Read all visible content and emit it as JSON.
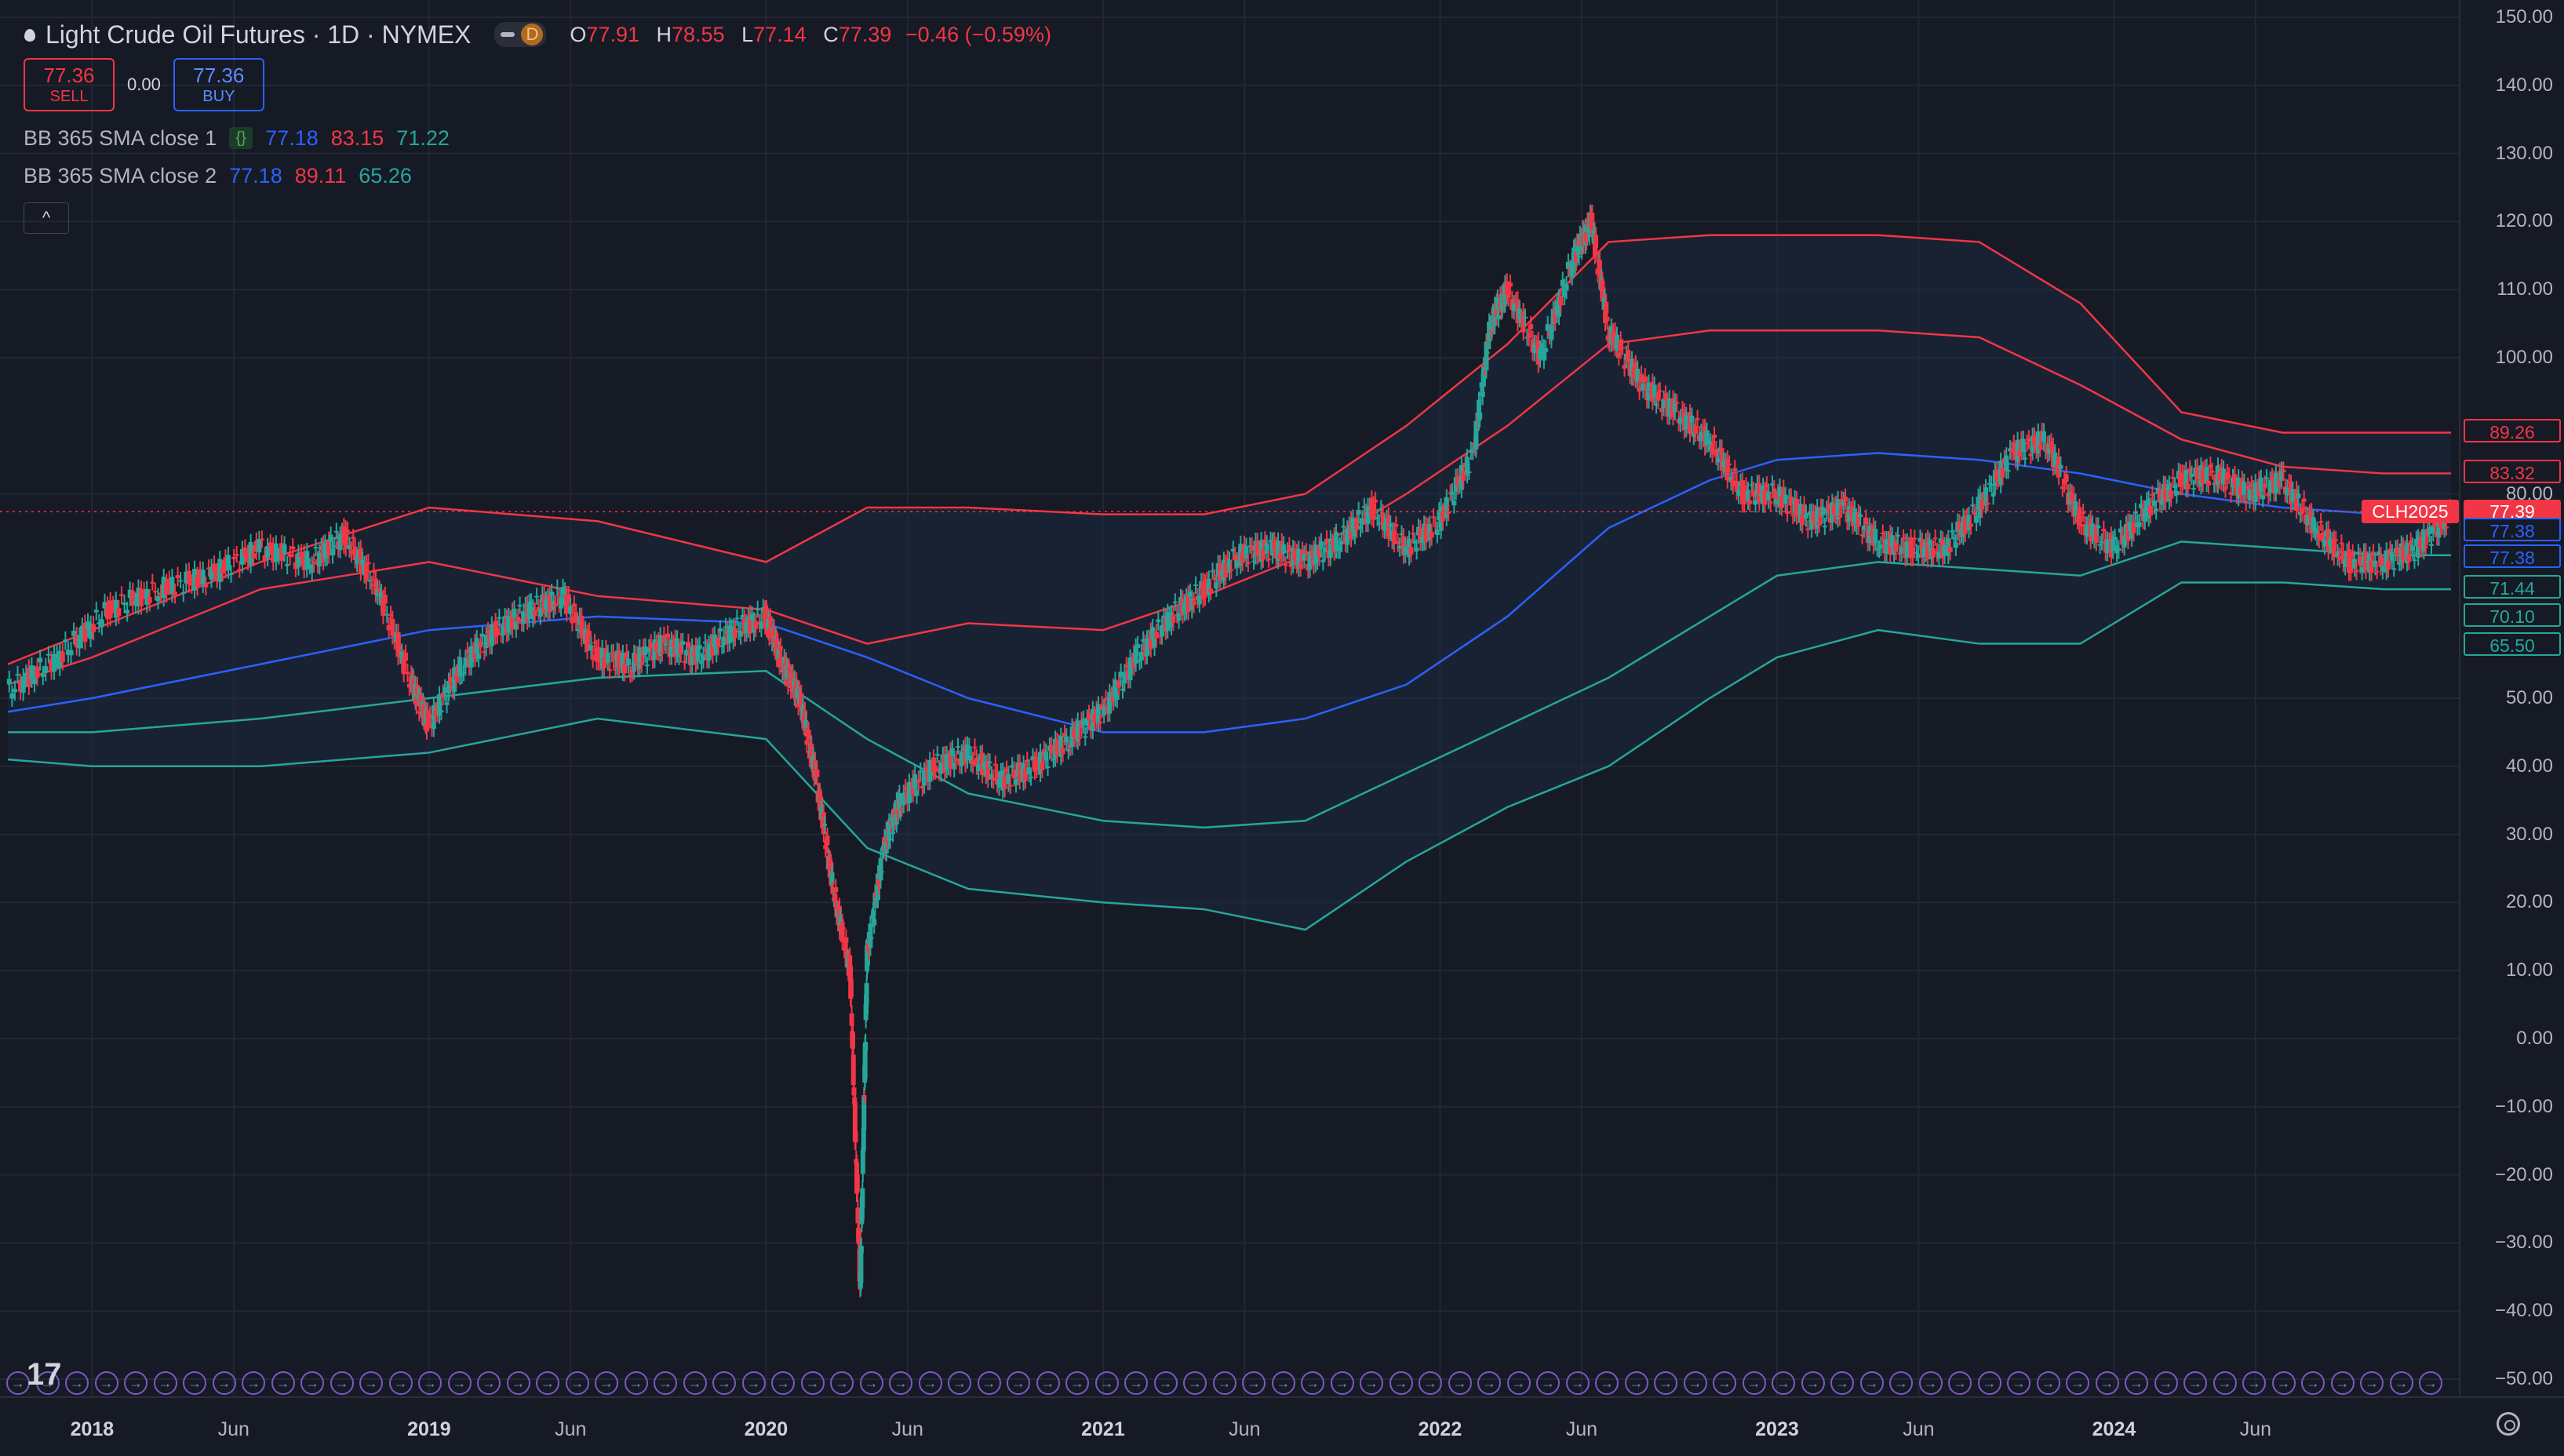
{
  "header": {
    "symbol_title": "Light Crude Oil Futures · 1D · NYMEX",
    "interval_badge": "D",
    "ohlc": {
      "o_label": "O",
      "o": "77.91",
      "h_label": "H",
      "h": "78.55",
      "l_label": "L",
      "l": "77.14",
      "c_label": "C",
      "c": "77.39",
      "change": "−0.46 (−0.59%)"
    }
  },
  "trade": {
    "sell_price": "77.36",
    "sell_label": "SELL",
    "spread": "0.00",
    "buy_price": "77.36",
    "buy_label": "BUY"
  },
  "indicators": [
    {
      "name": "BB 365 SMA close 1",
      "basis": "77.18",
      "upper": "83.15",
      "lower": "71.22"
    },
    {
      "name": "BB 365 SMA close 2",
      "basis": "77.18",
      "upper": "89.11",
      "lower": "65.26"
    }
  ],
  "collapse_glyph": "^",
  "logo_text": "17",
  "price_axis": {
    "ticks": [
      "150.00",
      "140.00",
      "130.00",
      "120.00",
      "110.00",
      "100.00",
      "80.00",
      "50.00",
      "40.00",
      "30.00",
      "20.00",
      "10.00",
      "0.00",
      "−10.00",
      "−20.00",
      "−30.00",
      "−40.00",
      "−50.00"
    ],
    "tick_values": [
      150,
      140,
      130,
      120,
      110,
      100,
      80,
      50,
      40,
      30,
      20,
      10,
      0,
      -10,
      -20,
      -30,
      -40,
      -50
    ],
    "tags": [
      {
        "label": "89.26",
        "value": 89.26,
        "color": "#f23645",
        "style": "outline"
      },
      {
        "label": "83.32",
        "value": 83.32,
        "color": "#f23645",
        "style": "outline"
      },
      {
        "label": "77.39",
        "value": 77.39,
        "color": "#f23645",
        "style": "filled"
      },
      {
        "label": "77.38",
        "value": 74.8,
        "color": "#2962ff",
        "style": "outline"
      },
      {
        "label": "77.38",
        "value": 70.8,
        "color": "#2962ff",
        "style": "outline"
      },
      {
        "label": "71.44",
        "value": 66.4,
        "color": "#26a69a",
        "style": "outline"
      },
      {
        "label": "70.10",
        "value": 62.2,
        "color": "#26a69a",
        "style": "outline"
      },
      {
        "label": "65.50",
        "value": 57.9,
        "color": "#26a69a",
        "style": "outline"
      }
    ],
    "symbol_tag": "CLH2025"
  },
  "time_axis": {
    "labels": [
      {
        "text": "2018",
        "t": 2018.0,
        "year": true
      },
      {
        "text": "Jun",
        "t": 2018.42,
        "year": false
      },
      {
        "text": "2019",
        "t": 2019.0,
        "year": true
      },
      {
        "text": "Jun",
        "t": 2019.42,
        "year": false
      },
      {
        "text": "2020",
        "t": 2020.0,
        "year": true
      },
      {
        "text": "Jun",
        "t": 2020.42,
        "year": false
      },
      {
        "text": "2021",
        "t": 2021.0,
        "year": true
      },
      {
        "text": "Jun",
        "t": 2021.42,
        "year": false
      },
      {
        "text": "2022",
        "t": 2022.0,
        "year": true
      },
      {
        "text": "Jun",
        "t": 2022.42,
        "year": false
      },
      {
        "text": "2023",
        "t": 2023.0,
        "year": true
      },
      {
        "text": "Jun",
        "t": 2023.42,
        "year": false
      },
      {
        "text": "2024",
        "t": 2024.0,
        "year": true
      },
      {
        "text": "Jun",
        "t": 2024.42,
        "year": false
      }
    ]
  },
  "colors": {
    "bg": "#161a25",
    "up": "#26a69a",
    "down": "#f23645",
    "basis": "#2962ff",
    "upper": "#f23645",
    "lower": "#26a69a",
    "grid": "#232733"
  },
  "chart_data": {
    "type": "line",
    "title": "Light Crude Oil Futures · 1D · NYMEX",
    "ylim": [
      -50,
      150
    ],
    "xlim": [
      2017.75,
      2025.0
    ],
    "grid": true,
    "last_price": 77.39,
    "series": [
      {
        "name": "Price",
        "x": [
          2017.75,
          2017.9,
          2018.05,
          2018.2,
          2018.35,
          2018.5,
          2018.65,
          2018.75,
          2018.85,
          2018.95,
          2019.0,
          2019.1,
          2019.2,
          2019.3,
          2019.4,
          2019.5,
          2019.6,
          2019.7,
          2019.8,
          2019.9,
          2020.0,
          2020.05,
          2020.1,
          2020.15,
          2020.2,
          2020.25,
          2020.28,
          2020.3,
          2020.35,
          2020.4,
          2020.5,
          2020.6,
          2020.7,
          2020.8,
          2020.9,
          2021.0,
          2021.1,
          2021.2,
          2021.3,
          2021.4,
          2021.5,
          2021.6,
          2021.7,
          2021.8,
          2021.9,
          2022.0,
          2022.1,
          2022.15,
          2022.2,
          2022.3,
          2022.4,
          2022.45,
          2022.5,
          2022.6,
          2022.7,
          2022.8,
          2022.9,
          2023.0,
          2023.1,
          2023.2,
          2023.3,
          2023.4,
          2023.5,
          2023.6,
          2023.7,
          2023.8,
          2023.9,
          2024.0,
          2024.1,
          2024.2,
          2024.3,
          2024.4,
          2024.5,
          2024.6,
          2024.7,
          2024.8,
          2024.9,
          2025.0
        ],
        "values": [
          51,
          56,
          63,
          66,
          68,
          72,
          70,
          74,
          66,
          52,
          46,
          55,
          60,
          63,
          65,
          56,
          55,
          58,
          56,
          60,
          62,
          55,
          50,
          38,
          22,
          10,
          -37,
          12,
          28,
          35,
          40,
          42,
          38,
          40,
          44,
          48,
          56,
          62,
          66,
          71,
          72,
          70,
          73,
          78,
          72,
          76,
          86,
          105,
          110,
          100,
          115,
          120,
          104,
          96,
          92,
          88,
          80,
          80,
          76,
          78,
          73,
          72,
          72,
          78,
          86,
          88,
          76,
          72,
          78,
          82,
          83,
          80,
          82,
          75,
          70,
          70,
          72,
          77
        ]
      },
      {
        "name": "Basis",
        "x": [
          2017.75,
          2018.0,
          2018.5,
          2019.0,
          2019.5,
          2020.0,
          2020.3,
          2020.6,
          2021.0,
          2021.3,
          2021.6,
          2021.9,
          2022.2,
          2022.5,
          2022.8,
          2023.0,
          2023.3,
          2023.6,
          2023.9,
          2024.2,
          2024.5,
          2024.8,
          2025.0
        ],
        "values": [
          48,
          50,
          55,
          60,
          62,
          61,
          56,
          50,
          45,
          45,
          47,
          52,
          62,
          75,
          82,
          85,
          86,
          85,
          83,
          80,
          78,
          77,
          77
        ]
      },
      {
        "name": "Upper 1",
        "x": [
          2017.75,
          2018.0,
          2018.5,
          2019.0,
          2019.5,
          2020.0,
          2020.3,
          2020.6,
          2021.0,
          2021.3,
          2021.6,
          2021.9,
          2022.2,
          2022.5,
          2022.8,
          2023.0,
          2023.3,
          2023.6,
          2023.9,
          2024.2,
          2024.5,
          2024.8,
          2025.0
        ],
        "values": [
          52,
          56,
          66,
          70,
          65,
          63,
          58,
          61,
          60,
          65,
          71,
          80,
          90,
          102,
          104,
          104,
          104,
          103,
          96,
          88,
          84,
          83,
          83
        ]
      },
      {
        "name": "Upper 2",
        "x": [
          2017.75,
          2018.0,
          2018.5,
          2019.0,
          2019.5,
          2020.0,
          2020.3,
          2020.6,
          2021.0,
          2021.3,
          2021.6,
          2021.9,
          2022.2,
          2022.5,
          2022.8,
          2023.0,
          2023.3,
          2023.6,
          2023.9,
          2024.2,
          2024.5,
          2024.8,
          2025.0
        ],
        "values": [
          55,
          60,
          70,
          78,
          76,
          70,
          78,
          78,
          77,
          77,
          80,
          90,
          102,
          117,
          118,
          118,
          118,
          117,
          108,
          92,
          89,
          89,
          89
        ]
      },
      {
        "name": "Lower 1",
        "x": [
          2017.75,
          2018.0,
          2018.5,
          2019.0,
          2019.5,
          2020.0,
          2020.3,
          2020.6,
          2021.0,
          2021.3,
          2021.6,
          2021.9,
          2022.2,
          2022.5,
          2022.8,
          2023.0,
          2023.3,
          2023.6,
          2023.9,
          2024.2,
          2024.5,
          2024.8,
          2025.0
        ],
        "values": [
          45,
          45,
          47,
          50,
          53,
          54,
          44,
          36,
          32,
          31,
          32,
          39,
          46,
          53,
          62,
          68,
          70,
          69,
          68,
          73,
          72,
          71,
          71
        ]
      },
      {
        "name": "Lower 2",
        "x": [
          2017.75,
          2018.0,
          2018.5,
          2019.0,
          2019.5,
          2020.0,
          2020.3,
          2020.6,
          2021.0,
          2021.3,
          2021.6,
          2021.9,
          2022.2,
          2022.5,
          2022.8,
          2023.0,
          2023.3,
          2023.6,
          2023.9,
          2024.2,
          2024.5,
          2024.8,
          2025.0
        ],
        "values": [
          41,
          40,
          40,
          42,
          47,
          44,
          28,
          22,
          20,
          19,
          16,
          26,
          34,
          40,
          50,
          56,
          60,
          58,
          58,
          67,
          67,
          66,
          66
        ]
      }
    ]
  }
}
